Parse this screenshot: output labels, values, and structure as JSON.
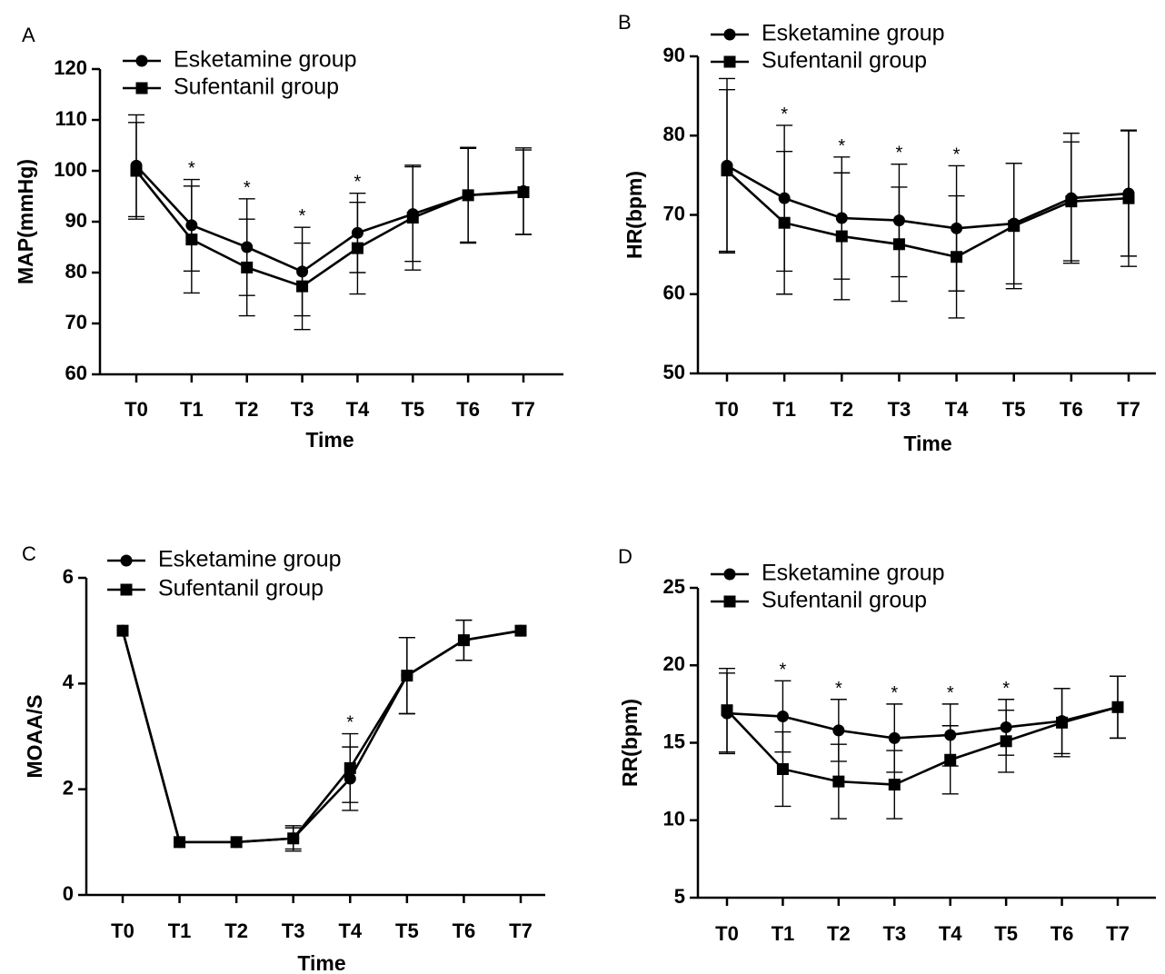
{
  "chart_data": [
    {
      "panel": "A",
      "type": "line",
      "categories": [
        "T0",
        "T1",
        "T2",
        "T3",
        "T4",
        "T5",
        "T6",
        "T7"
      ],
      "xlabel": "Time",
      "ylabel": "MAP(mmHg)",
      "ylim": [
        60,
        120
      ],
      "yticks": [
        "60",
        "70",
        "80",
        "90",
        "100",
        "110",
        "120"
      ],
      "legend_position": "top-left",
      "significance_marker": "*",
      "significant_at": [
        1,
        2,
        3,
        4
      ],
      "series": [
        {
          "name": "Esketamine group",
          "marker": "circle",
          "values": [
            101,
            89.3,
            85,
            80.2,
            87.8,
            91.5,
            95.2,
            96
          ],
          "error": [
            10,
            9,
            9.5,
            8.7,
            7.8,
            9.3,
            9.4,
            8.5
          ]
        },
        {
          "name": "Sufentanil group",
          "marker": "square",
          "values": [
            100,
            86.5,
            81,
            77.3,
            84.8,
            90.8,
            95.2,
            95.8
          ],
          "error": [
            9.5,
            10.5,
            9.5,
            8.5,
            9,
            10.3,
            9.2,
            8.3
          ]
        }
      ]
    },
    {
      "panel": "B",
      "type": "line",
      "categories": [
        "T0",
        "T1",
        "T2",
        "T3",
        "T4",
        "T5",
        "T6",
        "T7"
      ],
      "xlabel": "Time",
      "ylabel": "HR(bpm)",
      "ylim": [
        50,
        90
      ],
      "yticks": [
        "50",
        "60",
        "70",
        "80",
        "90"
      ],
      "legend_position": "top-left",
      "significance_marker": "*",
      "significant_at": [
        1,
        2,
        3,
        4
      ],
      "series": [
        {
          "name": "Esketamine group",
          "marker": "circle",
          "values": [
            76.2,
            72.1,
            69.6,
            69.3,
            68.3,
            68.9,
            72.1,
            72.7
          ],
          "error": [
            11,
            9.2,
            7.7,
            7.1,
            7.9,
            7.6,
            8.2,
            7.9
          ]
        },
        {
          "name": "Sufentanil group",
          "marker": "square",
          "values": [
            75.6,
            69,
            67.3,
            66.3,
            64.7,
            68.6,
            71.7,
            72.1
          ],
          "error": [
            10.2,
            9,
            8,
            7.2,
            7.7,
            7.9,
            7.5,
            8.6
          ]
        }
      ]
    },
    {
      "panel": "C",
      "type": "line",
      "categories": [
        "T0",
        "T1",
        "T2",
        "T3",
        "T4",
        "T5",
        "T6",
        "T7"
      ],
      "xlabel": "Time",
      "ylabel": "MOAA/S",
      "ylim": [
        0,
        6
      ],
      "yticks": [
        "0",
        "2",
        "4",
        "6"
      ],
      "legend_position": "top-left",
      "significance_marker": "*",
      "significant_at": [
        4
      ],
      "series": [
        {
          "name": "Esketamine group",
          "marker": "circle",
          "values": [
            5,
            1,
            1,
            1.07,
            2.2,
            4.15,
            4.82,
            5
          ],
          "error": [
            0,
            0,
            0,
            0.2,
            0.6,
            0.72,
            0.38,
            0
          ]
        },
        {
          "name": "Sufentanil group",
          "marker": "square",
          "values": [
            5,
            1,
            1,
            1.07,
            2.4,
            4.15,
            4.82,
            5
          ],
          "error": [
            0,
            0,
            0,
            0.24,
            0.65,
            0.72,
            0.38,
            0
          ]
        }
      ]
    },
    {
      "panel": "D",
      "type": "line",
      "categories": [
        "T0",
        "T1",
        "T2",
        "T3",
        "T4",
        "T5",
        "T6",
        "T7"
      ],
      "xlabel": "",
      "ylabel": "RR(bpm)",
      "ylim": [
        5,
        25
      ],
      "yticks": [
        "5",
        "10",
        "15",
        "20",
        "25"
      ],
      "legend_position": "top-left",
      "significance_marker": "*",
      "significant_at": [
        1,
        2,
        3,
        4,
        5
      ],
      "series": [
        {
          "name": "Esketamine group",
          "marker": "circle",
          "values": [
            16.9,
            16.7,
            15.8,
            15.3,
            15.5,
            16,
            16.4,
            17.3
          ],
          "error": [
            2.6,
            2.3,
            2,
            2.2,
            2,
            1.8,
            2.1,
            2
          ]
        },
        {
          "name": "Sufentanil group",
          "marker": "square",
          "values": [
            17.1,
            13.3,
            12.5,
            12.3,
            13.9,
            15.1,
            16.3,
            17.3
          ],
          "error": [
            2.7,
            2.4,
            2.4,
            2.2,
            2.2,
            2,
            2.2,
            2
          ]
        }
      ]
    }
  ]
}
